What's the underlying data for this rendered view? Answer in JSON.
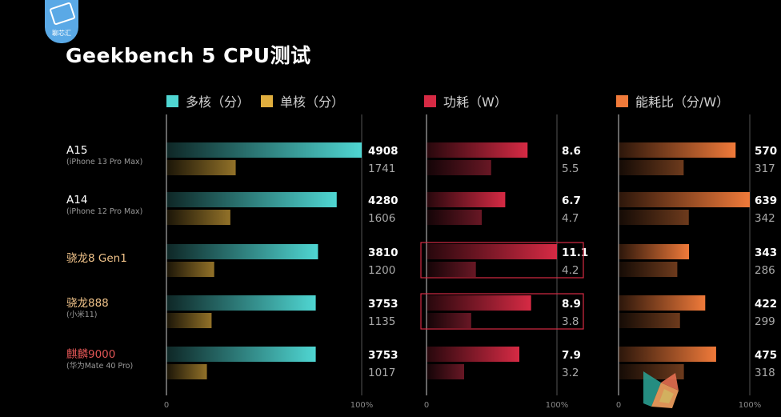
{
  "logo": {
    "text": "聊芯汇",
    "icon": "chip-logo-icon"
  },
  "chart_data": {
    "type": "bar",
    "title": "Geekbench 5 CPU测试",
    "categories": [
      {
        "name": "A15",
        "sub": "(iPhone 13 Pro Max)",
        "color": "#ffffff"
      },
      {
        "name": "A14",
        "sub": "(iPhone 12 Pro Max)",
        "color": "#ffffff"
      },
      {
        "name": "骁龙8 Gen1",
        "sub": "",
        "color": "#f2c48a"
      },
      {
        "name": "骁龙888",
        "sub": "(小米11)",
        "color": "#f2c48a"
      },
      {
        "name": "麒麟9000",
        "sub": "(华为Mate 40 Pro)",
        "color": "#e05555"
      }
    ],
    "panels": [
      {
        "id": "performance",
        "max": 4908,
        "axis_min_label": "0",
        "axis_max_label": "100%",
        "series": [
          {
            "name": "多核（分）",
            "color": "#4fd6d2",
            "values": [
              4908,
              4280,
              3810,
              3753,
              3753
            ]
          },
          {
            "name": "单核（分）",
            "color": "#e0ae3e",
            "values": [
              1741,
              1606,
              1200,
              1135,
              1017
            ]
          }
        ]
      },
      {
        "id": "power",
        "max": 11.1,
        "axis_min_label": "0",
        "axis_max_label": "100%",
        "highlight_rows": [
          2,
          3
        ],
        "series": [
          {
            "name": "功耗（W）",
            "color": "#d62a44",
            "values": [
              8.6,
              6.7,
              11.1,
              8.9,
              7.9
            ]
          },
          {
            "name": "",
            "color": "#a02438",
            "values": [
              5.5,
              4.7,
              4.2,
              3.8,
              3.2
            ]
          }
        ]
      },
      {
        "id": "efficiency",
        "max": 639,
        "axis_min_label": "0",
        "axis_max_label": "100%",
        "series": [
          {
            "name": "能耗比（分/W）",
            "color": "#f07a3a",
            "values": [
              570,
              639,
              343,
              422,
              475
            ]
          },
          {
            "name": "",
            "color": "#a85a2c",
            "values": [
              317,
              342,
              286,
              299,
              318
            ]
          }
        ]
      }
    ],
    "value_labels": [
      [
        [
          "4908",
          "1741"
        ],
        [
          "4280",
          "1606"
        ],
        [
          "3810",
          "1200"
        ],
        [
          "3753",
          "1135"
        ],
        [
          "3753",
          "1017"
        ]
      ],
      [
        [
          "8.6",
          "5.5"
        ],
        [
          "6.7",
          "4.7"
        ],
        [
          "11.1",
          "4.2"
        ],
        [
          "8.9",
          "3.8"
        ],
        [
          "7.9",
          "3.2"
        ]
      ],
      [
        [
          "570",
          "317"
        ],
        [
          "639",
          "342"
        ],
        [
          "343",
          "286"
        ],
        [
          "422",
          "299"
        ],
        [
          "475",
          "318"
        ]
      ]
    ]
  }
}
